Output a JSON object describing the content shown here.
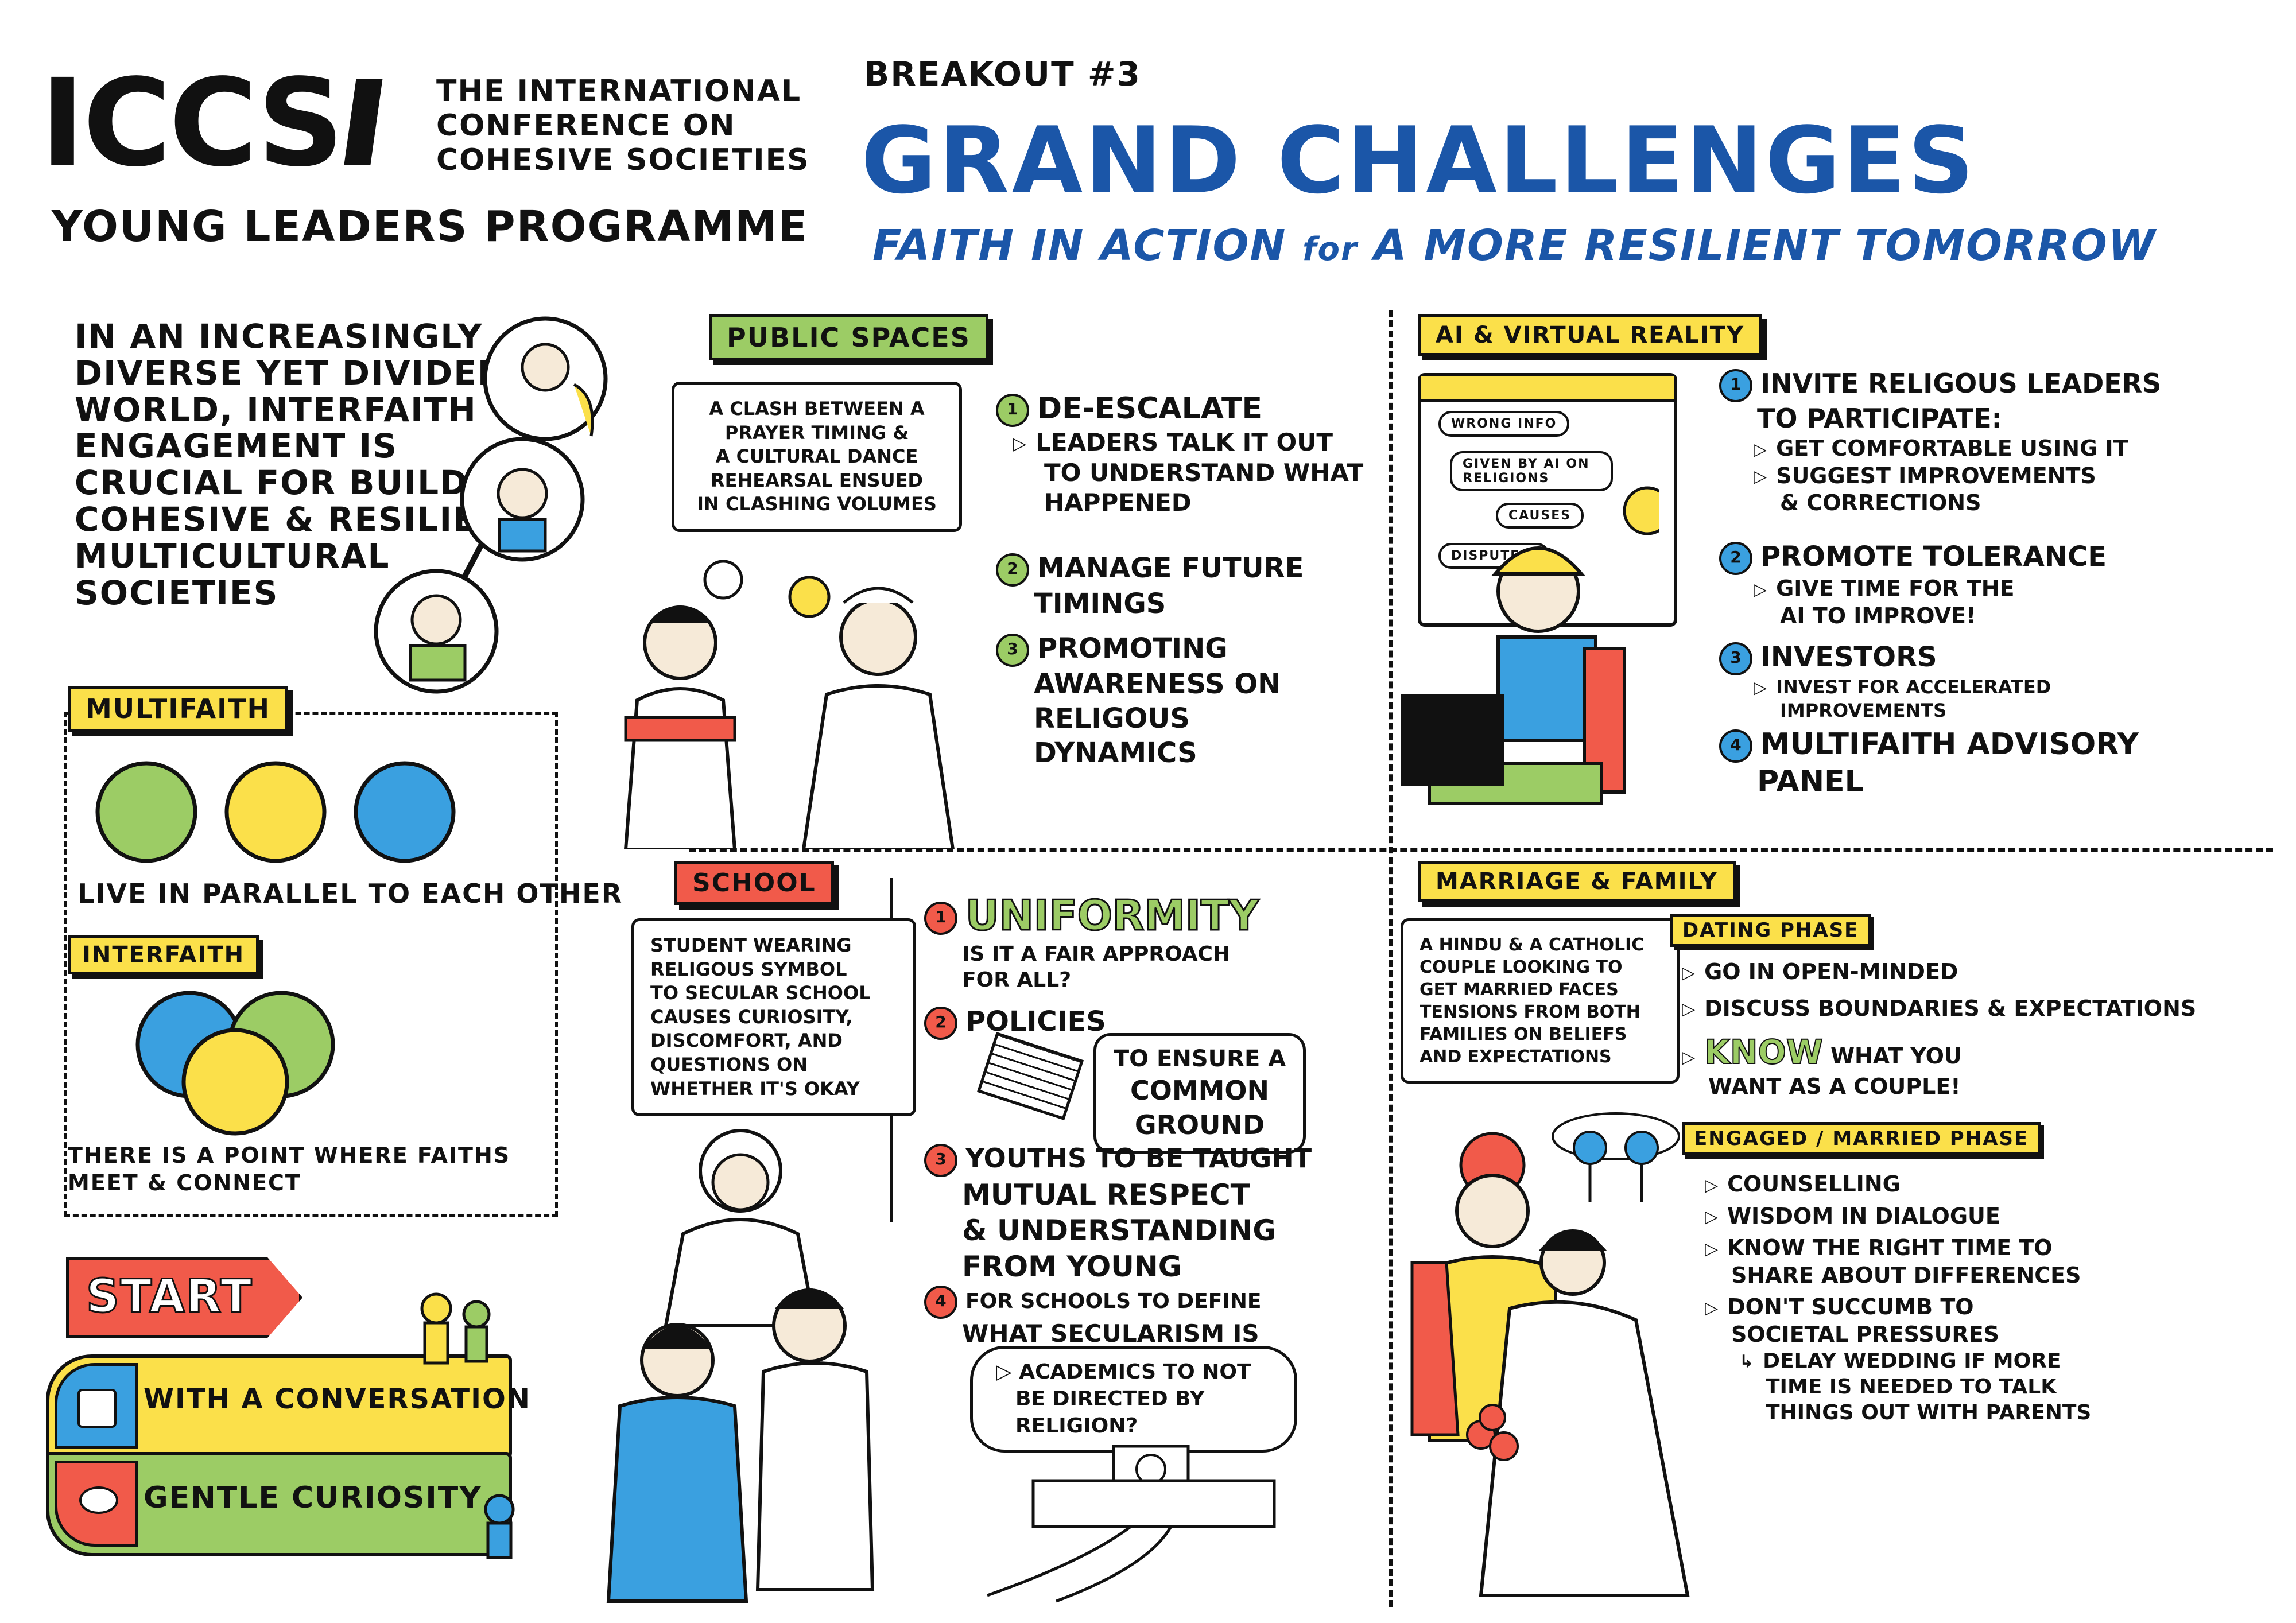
{
  "header": {
    "logo": "ICCS",
    "conference_line1": "THE INTERNATIONAL",
    "conference_line2": "CONFERENCE on",
    "conference_line3": "COHESIVE SOCIETIES",
    "programme": "YOUNG LEADERS PROGRAMME",
    "breakout": "BREAKOUT #3",
    "title": "GRAND CHALLENGES",
    "subtitle_a": "FAITH IN ACTION ",
    "subtitle_b": "for",
    "subtitle_c": " A MORE RESILIENT TOMORROW"
  },
  "intro": {
    "lines": [
      "IN AN INCREASINGLY",
      "DIVERSE YET DIVIDED",
      "WORLD, INTERFAITH",
      "ENGAGEMENT IS",
      "CRUCIAL FOR BUILDING",
      "COHESIVE & RESILIENT",
      "MULTICULTURAL",
      "SOCIETIES"
    ]
  },
  "multifaith": {
    "tag": "MULTIFAITH",
    "caption": "LIVE IN PARALLEL TO EACH OTHER"
  },
  "interfaith": {
    "tag": "INTERFAITH",
    "caption_l1": "THERE IS A POINT WHERE FAITHS",
    "caption_l2": "MEET & CONNECT"
  },
  "start": {
    "label": "START",
    "step1": "WITH A CONVERSATION",
    "step2": "GENTLE CURIOSITY"
  },
  "public_spaces": {
    "tag": "PUBLIC SPACES",
    "bubble": [
      "A CLASH BETWEEN A",
      "PRAYER TIMING &",
      "A CULTURAL DANCE",
      "REHEARSAL ENSUED",
      "IN CLASHING VOLUMES"
    ],
    "item1": "DE-ESCALATE",
    "item1_sub": [
      "LEADERS TALK IT OUT",
      "TO UNDERSTAND WHAT",
      "HAPPENED"
    ],
    "item2": [
      "MANAGE FUTURE",
      "TIMINGS"
    ],
    "item3": [
      "PROMOTING",
      "AWARENESS ON",
      "RELIGOUS",
      "DYNAMICS"
    ]
  },
  "ai_vr": {
    "tag": "AI & VIRTUAL REALITY",
    "screen": [
      "WRONG INFO",
      "GIVEN BY AI ON RELIGIONS",
      "CAUSES",
      "DISPUTES!"
    ],
    "item1": [
      "INVITE RELIGOUS LEADERS",
      "TO PARTICIPATE:"
    ],
    "item1_sub1": "GET COMFORTABLE USING IT",
    "item1_sub2": [
      "SUGGEST IMPROVEMENTS",
      "& CORRECTIONS"
    ],
    "item2": "PROMOTE TOLERANCE",
    "item2_sub": [
      "GIVE TIME FOR THE",
      "AI TO IMPROVE!"
    ],
    "item3": "INVESTORS",
    "item3_sub": [
      "INVEST FOR ACCELERATED",
      "IMPROVEMENTS"
    ],
    "item4": [
      "MULTIFAITH ADVISORY",
      "PANEL"
    ]
  },
  "school": {
    "tag": "SCHOOL",
    "bubble": [
      "STUDENT WEARING",
      "RELIGOUS SYMBOL",
      "TO SECULAR SCHOOL",
      "CAUSES CURIOSITY,",
      "DISCOMFORT, and",
      "QUESTIONS ON",
      "WHETHER IT'S OKAY"
    ],
    "item1": "UNIFORMITY",
    "item1_sub": [
      "IS IT A FAIR APPROACH",
      "FOR ALL?"
    ],
    "item2": "POLICIES",
    "item2_box": [
      "TO ENSURE A",
      "COMMON",
      "GROUND"
    ],
    "item3": [
      "YOUTHS to be TAUGHT",
      "MUTUAL RESPECT",
      "& UNDERSTANDING",
      "from YOUNG"
    ],
    "item4": [
      "FOR SCHOOLS TO DEFINE",
      "WHAT SECULARISM IS"
    ],
    "item4_box": [
      "ACADEMICS TO NOT",
      "BE DIRECTED BY",
      "RELIGION?"
    ]
  },
  "marriage": {
    "tag": "MARRIAGE & FAMILY",
    "bubble": [
      "A HINDU & A CATHOLIC",
      "COUPLE LOOKING TO",
      "GET MARRIED FACES",
      "TENSIONS FROM BOTH",
      "FAMILIES ON BELIEFS",
      "AND EXPECTATIONS"
    ],
    "dating_tag": "DATING PHASE",
    "dating1": "GO IN OPEN-MINDED",
    "dating2": "DISCUSS BOUNDARIES & EXPECTATIONS",
    "dating3_a": "KNOW",
    "dating3_b": " WHAT YOU",
    "dating3_c": "WANT AS A COUPLE!",
    "engaged_tag": "ENGAGED / MARRIED PHASE",
    "eng1": "COUNSELLING",
    "eng2": "WISDOM in DIALOGUE",
    "eng3": [
      "KNOW THE RIGHT TIME TO",
      "SHARE ABOUT DIFFERENCES"
    ],
    "eng4": [
      "DON'T SUCCUMB TO",
      "SOCIETAL PRESSURES"
    ],
    "eng4_sub": [
      "DELAY WEDDING IF MORE",
      "TIME IS NEEDED TO TALK",
      "THINGS OUT WITH PARENTS"
    ]
  },
  "colors": {
    "green": "#9ccc65",
    "yellow": "#fbe04a",
    "blue": "#3aa0e0",
    "red": "#f15a4a",
    "title_blue": "#1b56a8"
  }
}
